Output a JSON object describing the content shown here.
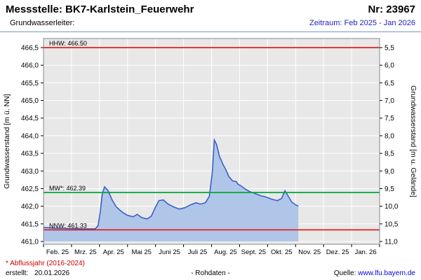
{
  "header": {
    "title": "Messstelle: BK7-Karlstein_Feuerwehr",
    "number": "Nr: 23967",
    "aquifer_label": "Grundwasserleiter:",
    "period": "Zeitraum: Feb 2025 - Jan 2026"
  },
  "footer": {
    "note": "* Abflussjahr (2016-2024)",
    "created_label": "erstellt:",
    "created_date": "20.01.2026",
    "center": "- Rohdaten -",
    "source_label": "Quelle:",
    "source_link": "www.lfu.bayern.de"
  },
  "colors": {
    "period_blue": "#2222bb",
    "note_red": "#cc0000",
    "link_blue": "#0000dd",
    "series_line": "#3a5fc8",
    "series_fill": "#b0c6e8",
    "ref_red": "#e02020",
    "ref_green": "#00a838",
    "plot_bg": "#e8e8e8"
  },
  "chart_data": {
    "type": "area",
    "title": "",
    "grid": true,
    "legend": "none",
    "x_axis": {
      "labels": [
        "Feb. 25",
        "Mrz. 25",
        "Apr. 25",
        "Mai 25",
        "Juni 25",
        "Juli 25",
        "Aug. 25",
        "Sept. 25",
        "Okt. 25",
        "Nov. 25",
        "Dez. 25",
        "Jan. 26"
      ],
      "months_range": [
        0,
        12
      ]
    },
    "y_left": {
      "label": "Grundwasserstand [m ü. NN]",
      "min": 461.0,
      "max": 466.5,
      "tick_step": 0.5,
      "tick_labels": [
        "466,5",
        "466,0",
        "465,5",
        "465,0",
        "464,5",
        "464,0",
        "463,5",
        "463,0",
        "462,5",
        "462,0",
        "461,5",
        "461,0"
      ]
    },
    "y_right": {
      "label": "Grundwasserstand [m u. Gelände]",
      "top": 5.5,
      "bottom": 11.0,
      "inverted": true,
      "tick_labels": [
        "5,5",
        "6,0",
        "6,5",
        "7,0",
        "7,5",
        "8,0",
        "8,5",
        "9,0",
        "9,5",
        "10,0",
        "10,5",
        "11,0"
      ]
    },
    "reference_lines": [
      {
        "name": "HHW",
        "label": "HHW: 466.50",
        "value": 466.5,
        "color": "#e02020"
      },
      {
        "name": "MW",
        "label": "MW*: 462.39",
        "value": 462.39,
        "color": "#00a838"
      },
      {
        "name": "NNW",
        "label": "NNW: 461.33",
        "value": 461.33,
        "color": "#e02020"
      }
    ],
    "series": [
      {
        "name": "Grundwasserstand Rohdaten",
        "color": "#3a5fc8",
        "fill": "#b0c6e8",
        "points": [
          [
            0.0,
            461.4
          ],
          [
            0.4,
            461.38
          ],
          [
            0.9,
            461.37
          ],
          [
            1.4,
            461.36
          ],
          [
            1.85,
            461.36
          ],
          [
            1.95,
            461.45
          ],
          [
            2.02,
            461.8
          ],
          [
            2.1,
            462.35
          ],
          [
            2.18,
            462.55
          ],
          [
            2.3,
            462.45
          ],
          [
            2.45,
            462.18
          ],
          [
            2.6,
            461.98
          ],
          [
            2.8,
            461.84
          ],
          [
            3.0,
            461.74
          ],
          [
            3.2,
            461.7
          ],
          [
            3.35,
            461.77
          ],
          [
            3.5,
            461.68
          ],
          [
            3.7,
            461.64
          ],
          [
            3.85,
            461.72
          ],
          [
            4.0,
            461.98
          ],
          [
            4.12,
            462.16
          ],
          [
            4.28,
            462.18
          ],
          [
            4.45,
            462.06
          ],
          [
            4.65,
            461.98
          ],
          [
            4.85,
            461.92
          ],
          [
            5.05,
            461.96
          ],
          [
            5.25,
            462.04
          ],
          [
            5.45,
            462.1
          ],
          [
            5.6,
            462.06
          ],
          [
            5.78,
            462.1
          ],
          [
            5.92,
            462.28
          ],
          [
            6.02,
            462.9
          ],
          [
            6.1,
            463.88
          ],
          [
            6.18,
            463.75
          ],
          [
            6.28,
            463.42
          ],
          [
            6.4,
            463.2
          ],
          [
            6.52,
            463.02
          ],
          [
            6.62,
            462.84
          ],
          [
            6.75,
            462.72
          ],
          [
            6.88,
            462.7
          ],
          [
            6.95,
            462.62
          ],
          [
            7.05,
            462.58
          ],
          [
            7.18,
            462.5
          ],
          [
            7.35,
            462.42
          ],
          [
            7.55,
            462.36
          ],
          [
            7.75,
            462.3
          ],
          [
            7.95,
            462.26
          ],
          [
            8.15,
            462.2
          ],
          [
            8.35,
            462.16
          ],
          [
            8.5,
            462.22
          ],
          [
            8.62,
            462.44
          ],
          [
            8.74,
            462.28
          ],
          [
            8.86,
            462.12
          ],
          [
            9.0,
            462.04
          ],
          [
            9.1,
            462.0
          ]
        ]
      }
    ]
  }
}
